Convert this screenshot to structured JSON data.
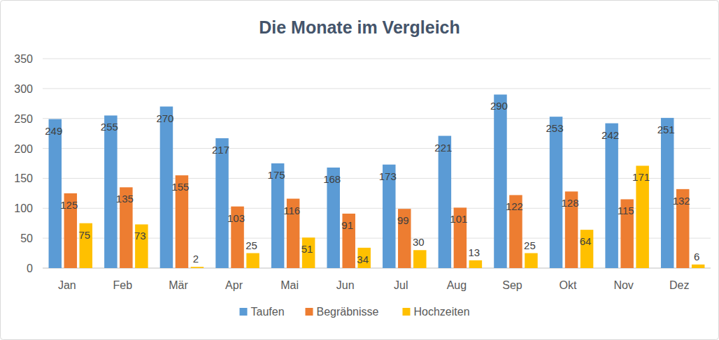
{
  "chart_data": {
    "type": "bar",
    "title": "Die Monate im Vergleich",
    "categories": [
      "Jan",
      "Feb",
      "Mär",
      "Apr",
      "Mai",
      "Jun",
      "Jul",
      "Aug",
      "Sep",
      "Okt",
      "Nov",
      "Dez"
    ],
    "series": [
      {
        "name": "Taufen",
        "color": "#5b9bd5",
        "values": [
          249,
          255,
          270,
          217,
          175,
          168,
          173,
          221,
          290,
          253,
          242,
          251
        ]
      },
      {
        "name": "Begräbnisse",
        "color": "#ed7d31",
        "values": [
          125,
          135,
          155,
          103,
          116,
          91,
          99,
          101,
          122,
          128,
          115,
          132
        ]
      },
      {
        "name": "Hochzeiten",
        "color": "#ffc000",
        "values": [
          75,
          73,
          2,
          25,
          51,
          34,
          30,
          13,
          25,
          64,
          171,
          6
        ]
      }
    ],
    "ylim": [
      0,
      350
    ],
    "yticks": [
      0,
      50,
      100,
      150,
      200,
      250,
      300,
      350
    ],
    "grid": true,
    "legend": "bottom",
    "data_labels": true
  }
}
